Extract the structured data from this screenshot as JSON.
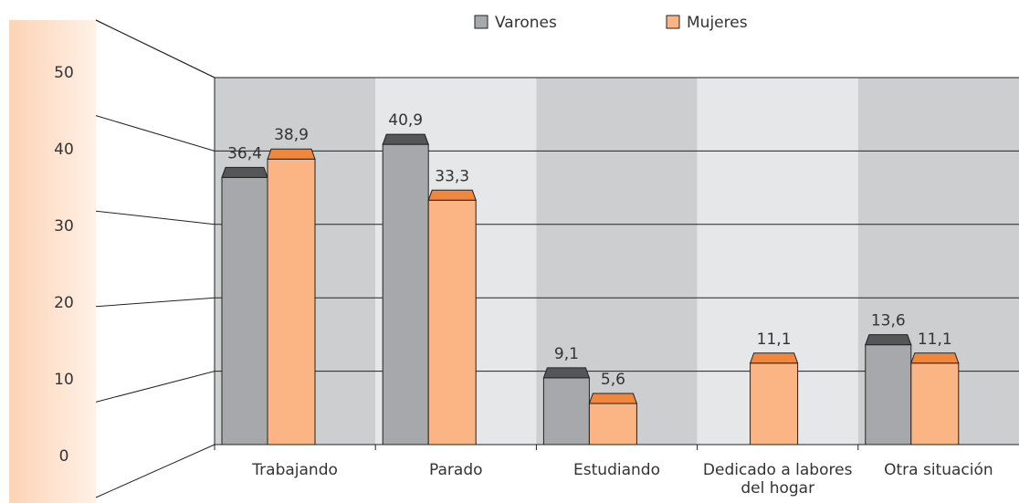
{
  "chart_data": {
    "type": "bar",
    "categories": [
      "Trabajando",
      "Parado",
      "Estudiando",
      "Dedicado a labores del hogar",
      "Otra situación"
    ],
    "series": [
      {
        "name": "Varones",
        "color": "#a7a8ab",
        "values": [
          36.4,
          40.9,
          9.1,
          null,
          13.6
        ],
        "value_labels": [
          "36,4",
          "40,9",
          "9,1",
          null,
          "13,6"
        ]
      },
      {
        "name": "Mujeres",
        "color": "#fbb584",
        "values": [
          38.9,
          33.3,
          5.6,
          11.1,
          11.1
        ],
        "value_labels": [
          "38,9",
          "33,3",
          "5,6",
          "11,1",
          "11,1"
        ]
      }
    ],
    "ylim": [
      0,
      50
    ],
    "yticks": [
      0,
      10,
      20,
      30,
      40,
      50
    ],
    "grid": true,
    "legend": "top"
  }
}
